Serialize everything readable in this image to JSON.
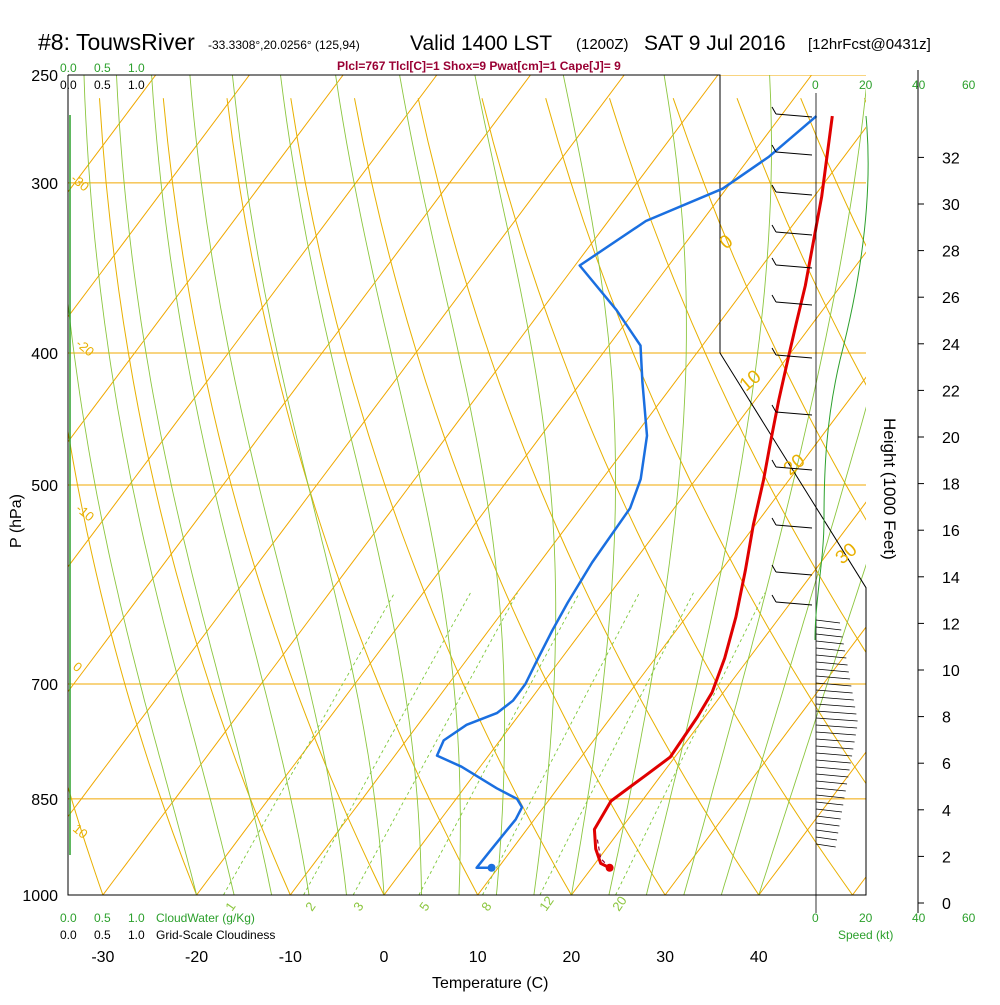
{
  "header": {
    "station": "#8: TouwsRiver",
    "coords": "-33.3308°,20.0256° (125,94)",
    "valid": "Valid 1400 LST",
    "utc": "(1200Z)",
    "date": "SAT 9 Jul 2016",
    "fcst": "[12hrFcst@0431z]",
    "indices": "Plcl=767 Tlcl[C]=1 Shox=9 Pwat[cm]=1 Cape[J]= 9"
  },
  "colors": {
    "temperature": "#e00000",
    "dewpoint": "#1a6fe0",
    "isotherm": "#f0a800",
    "dry_adiabat": "#e8b000",
    "moist_adiabat": "#8cc63f",
    "mixing_ratio": "#7ec83a",
    "speed": "#2ca02c",
    "indices": "#990033"
  },
  "chart_data": {
    "type": "line",
    "title": "#8: TouwsRiver",
    "xlabel": "Temperature (C)",
    "ylabel": "P (hPa)",
    "right_label": "Height (1000 Feet)",
    "xlim": [
      -33,
      36
    ],
    "ylim": [
      1000,
      250
    ],
    "x_ticks": [
      "-30",
      "-20",
      "-10",
      "0",
      "10",
      "20",
      "30",
      "40"
    ],
    "y_ticks": [
      "250",
      "300",
      "400",
      "500",
      "700",
      "850",
      "1000"
    ],
    "height_ticks": [
      "0",
      "2",
      "4",
      "6",
      "8",
      "10",
      "12",
      "14",
      "16",
      "18",
      "20",
      "22",
      "24",
      "26",
      "28",
      "30",
      "32"
    ],
    "series": [
      {
        "key": "temperature",
        "points": [
          [
            21.9,
            955
          ],
          [
            20.6,
            948
          ],
          [
            18.9,
            925
          ],
          [
            17.2,
            895
          ],
          [
            16.7,
            853
          ],
          [
            18.3,
            818
          ],
          [
            19.5,
            792
          ],
          [
            19.2,
            740
          ],
          [
            18.8,
            710
          ],
          [
            17.4,
            670
          ],
          [
            15.3,
            625
          ],
          [
            12.6,
            578
          ],
          [
            9.8,
            535
          ],
          [
            7.3,
            496
          ],
          [
            5.0,
            465
          ],
          [
            2.5,
            433
          ],
          [
            0.2,
            404
          ],
          [
            -1.8,
            380
          ],
          [
            -3.8,
            357
          ],
          [
            -6.4,
            332
          ],
          [
            -9.2,
            307
          ],
          [
            -12.1,
            285
          ],
          [
            -14.5,
            268
          ]
        ]
      },
      {
        "key": "dewpoint",
        "points": [
          [
            9.3,
            955
          ],
          [
            7.7,
            955
          ],
          [
            7.8,
            928
          ],
          [
            8.0,
            880
          ],
          [
            7.7,
            862
          ],
          [
            6.5,
            850
          ],
          [
            3.5,
            835
          ],
          [
            -2.0,
            805
          ],
          [
            -5.5,
            790
          ],
          [
            -6.0,
            770
          ],
          [
            -4.8,
            750
          ],
          [
            -2.5,
            735
          ],
          [
            -1.8,
            720
          ],
          [
            -1.8,
            700
          ],
          [
            -2.5,
            670
          ],
          [
            -3.2,
            640
          ],
          [
            -3.8,
            610
          ],
          [
            -4.4,
            570
          ],
          [
            -4.7,
            520
          ],
          [
            -5.9,
            495
          ],
          [
            -8.7,
            460
          ],
          [
            -13.5,
            420
          ],
          [
            -16.6,
            395
          ],
          [
            -22.0,
            372
          ],
          [
            -29.5,
            345
          ],
          [
            -26.0,
            320
          ],
          [
            -20.4,
            303
          ],
          [
            -18.0,
            287
          ],
          [
            -16.2,
            268
          ]
        ]
      },
      {
        "key": "parcel",
        "points": [
          [
            21.9,
            955
          ],
          [
            20.2,
            940
          ],
          [
            18.3,
            910
          ]
        ]
      }
    ],
    "isobar_labels": [
      "250",
      "300",
      "400",
      "500",
      "700",
      "850",
      "1000"
    ],
    "dry_adiabat_labels": [
      "-30",
      "-20",
      "-10",
      "0",
      "10"
    ],
    "moist_adiabat_labels": [
      "0",
      "10",
      "20",
      "30"
    ],
    "mixing_ratio_labels": [
      "1",
      "2",
      "3",
      "5",
      "8",
      "12",
      "20"
    ],
    "wind_speed_axis": [
      "0",
      "20",
      "40",
      "60"
    ],
    "wind_speed_label": "Speed (kt)",
    "cloud_axis": [
      "0.0",
      "0.5",
      "1.0"
    ],
    "cloud_water_label": "CloudWater (g/Kg)",
    "cloudiness_label": "Grid-Scale Cloudiness",
    "surface_marks": {
      "temperature": 21.9,
      "dewpoint": 9.3,
      "pressure": 955
    }
  }
}
